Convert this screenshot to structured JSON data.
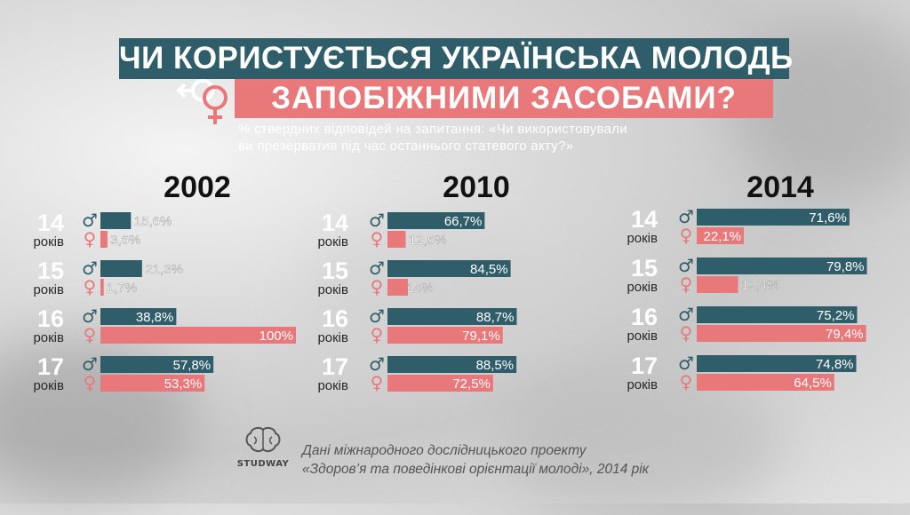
{
  "title_line1": "ЧИ КОРИСТУЄТЬСЯ УКРАЇНСЬКА МОЛОДЬ",
  "title_line2": "ЗАПОБІЖНИМИ ЗАСОБАМИ?",
  "subtitle_line1": "% ствердних відповідей на запитання: «Чи використовували",
  "subtitle_line2": "ви презерватив під час останнього статевого акту?»",
  "source_line1": "Дані міжнародного дослідницького проекту",
  "source_line2": "«Здоров’я та поведінкові орієнтації молоді», 2014 рік",
  "brand": "STUDWAY",
  "age_unit": "років",
  "male_symbol": "♂",
  "female_symbol": "♀",
  "colors": {
    "male": "#2f5e6a",
    "female": "#e8787a",
    "title_bg": "#2f5e6a",
    "accent": "#e8787a"
  },
  "chart_data": [
    {
      "type": "bar",
      "title": "2002",
      "categories": [
        "14",
        "15",
        "16",
        "17"
      ],
      "series": [
        {
          "name": "♂",
          "values": [
            15.6,
            21.3,
            38.8,
            57.8
          ],
          "labels": [
            "15,6%",
            "21,3%",
            "38,8%",
            "57,8%"
          ]
        },
        {
          "name": "♀",
          "values": [
            3.6,
            1.7,
            100,
            53.3
          ],
          "labels": [
            "3,6%",
            "1,7%",
            "100%",
            "53,3%"
          ]
        }
      ]
    },
    {
      "type": "bar",
      "title": "2010",
      "categories": [
        "14",
        "15",
        "16",
        "17"
      ],
      "series": [
        {
          "name": "♂",
          "values": [
            66.7,
            84.5,
            88.7,
            88.5
          ],
          "labels": [
            "66,7%",
            "84,5%",
            "88,7%",
            "88,5%"
          ]
        },
        {
          "name": "♀",
          "values": [
            12.5,
            14,
            79.1,
            72.5
          ],
          "labels": [
            "12,5%",
            "14%",
            "79,1%",
            "72,5%"
          ]
        }
      ]
    },
    {
      "type": "bar",
      "title": "2014",
      "categories": [
        "14",
        "15",
        "16",
        "17"
      ],
      "series": [
        {
          "name": "♂",
          "values": [
            71.6,
            79.8,
            75.2,
            74.8
          ],
          "labels": [
            "71,6%",
            "79,8%",
            "75,2%",
            "74,8%"
          ]
        },
        {
          "name": "♀",
          "values": [
            22.1,
            19.4,
            79.4,
            64.5
          ],
          "labels": [
            "22,1%",
            "19,4%",
            "79,4%",
            "64,5%"
          ]
        }
      ]
    }
  ]
}
